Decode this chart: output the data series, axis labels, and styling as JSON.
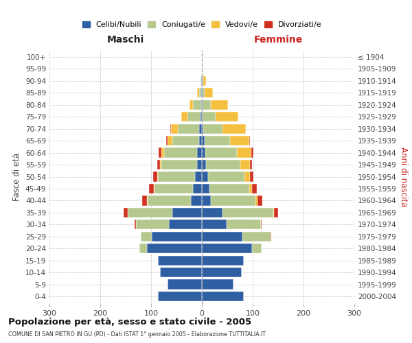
{
  "age_groups": [
    "0-4",
    "5-9",
    "10-14",
    "15-19",
    "20-24",
    "25-29",
    "30-34",
    "35-39",
    "40-44",
    "45-49",
    "50-54",
    "55-59",
    "60-64",
    "65-69",
    "70-74",
    "75-79",
    "80-84",
    "85-89",
    "90-94",
    "95-99",
    "100+"
  ],
  "birth_years": [
    "2000-2004",
    "1995-1999",
    "1990-1994",
    "1985-1989",
    "1980-1984",
    "1975-1979",
    "1970-1974",
    "1965-1969",
    "1960-1964",
    "1955-1959",
    "1950-1954",
    "1945-1949",
    "1940-1944",
    "1935-1939",
    "1930-1934",
    "1925-1929",
    "1920-1924",
    "1915-1919",
    "1910-1914",
    "1905-1909",
    "≤ 1904"
  ],
  "males": {
    "celibi": [
      87,
      68,
      82,
      87,
      108,
      98,
      65,
      58,
      22,
      18,
      14,
      10,
      10,
      6,
      5,
      3,
      2,
      1,
      1,
      0,
      0
    ],
    "coniugati": [
      0,
      0,
      0,
      0,
      15,
      22,
      65,
      88,
      85,
      75,
      72,
      70,
      65,
      52,
      42,
      25,
      15,
      5,
      2,
      0,
      0
    ],
    "vedovi": [
      0,
      0,
      0,
      0,
      0,
      0,
      0,
      0,
      1,
      1,
      2,
      3,
      5,
      10,
      14,
      12,
      8,
      3,
      0,
      0,
      0
    ],
    "divorziati": [
      0,
      0,
      0,
      0,
      0,
      0,
      2,
      8,
      10,
      10,
      8,
      5,
      5,
      2,
      1,
      0,
      0,
      0,
      0,
      0,
      0
    ]
  },
  "females": {
    "nubili": [
      82,
      62,
      78,
      82,
      98,
      80,
      48,
      40,
      18,
      15,
      12,
      8,
      7,
      5,
      3,
      2,
      2,
      1,
      1,
      0,
      0
    ],
    "coniugate": [
      0,
      0,
      0,
      0,
      20,
      55,
      68,
      100,
      88,
      78,
      72,
      68,
      62,
      50,
      38,
      25,
      15,
      5,
      2,
      0,
      0
    ],
    "vedove": [
      0,
      0,
      0,
      0,
      0,
      0,
      0,
      2,
      3,
      5,
      10,
      18,
      28,
      38,
      45,
      45,
      35,
      15,
      5,
      1,
      0
    ],
    "divorziate": [
      0,
      0,
      0,
      0,
      0,
      1,
      2,
      8,
      10,
      10,
      8,
      5,
      5,
      1,
      0,
      0,
      0,
      0,
      0,
      0,
      0
    ]
  },
  "colors": {
    "celibi": "#2e5fa3",
    "coniugati": "#b5c98e",
    "vedovi": "#f5c040",
    "divorziati": "#d03020"
  },
  "title": "Popolazione per età, sesso e stato civile - 2005",
  "subtitle": "COMUNE DI SAN PIETRO IN GU (PD) - Dati ISTAT 1° gennaio 2005 - Elaborazione TUTTITALIA.IT",
  "xlabel_left": "Maschi",
  "xlabel_right": "Femmine",
  "ylabel_left": "Fasce di età",
  "ylabel_right": "Anni di nascita",
  "xlim": 300,
  "bg_color": "#ffffff",
  "grid_color": "#cccccc",
  "bar_height": 0.82
}
